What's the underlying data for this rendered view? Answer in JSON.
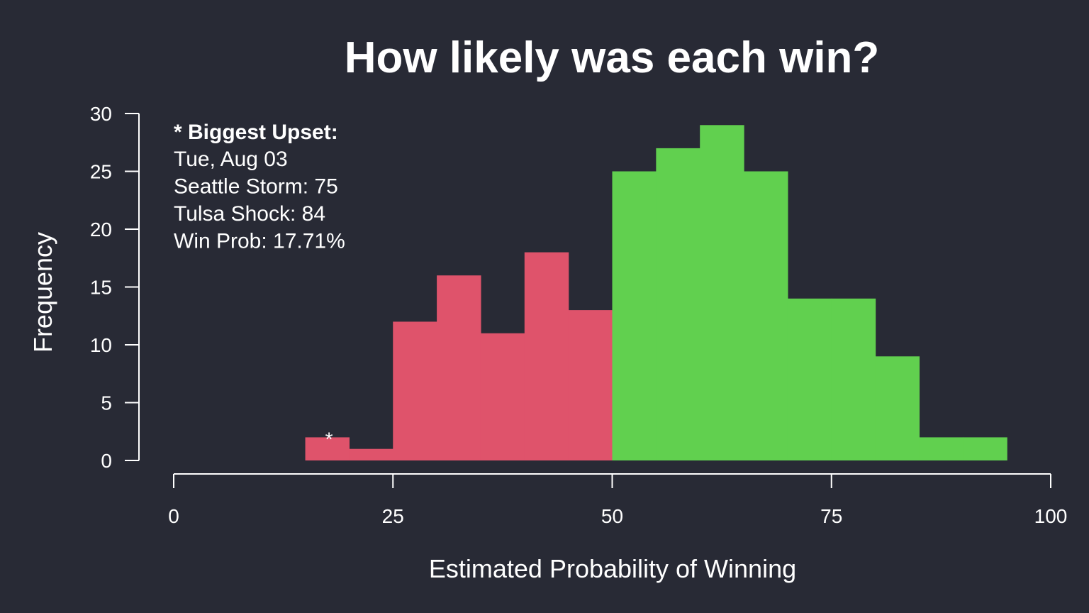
{
  "chart_data": {
    "type": "bar",
    "title": "How likely was each win?",
    "xlabel": "Estimated Probability of Winning",
    "ylabel": "Frequency",
    "xlim": [
      0,
      100
    ],
    "ylim": [
      0,
      30
    ],
    "x_ticks": [
      0,
      25,
      50,
      75,
      100
    ],
    "y_ticks": [
      0,
      5,
      10,
      15,
      20,
      25,
      30
    ],
    "bin_width": 5,
    "bins": [
      {
        "start": 15,
        "end": 20,
        "count": 2
      },
      {
        "start": 20,
        "end": 25,
        "count": 1
      },
      {
        "start": 25,
        "end": 30,
        "count": 12
      },
      {
        "start": 30,
        "end": 35,
        "count": 16
      },
      {
        "start": 35,
        "end": 40,
        "count": 11
      },
      {
        "start": 40,
        "end": 45,
        "count": 18
      },
      {
        "start": 45,
        "end": 50,
        "count": 13
      },
      {
        "start": 50,
        "end": 55,
        "count": 25
      },
      {
        "start": 55,
        "end": 60,
        "count": 27
      },
      {
        "start": 60,
        "end": 65,
        "count": 29
      },
      {
        "start": 65,
        "end": 70,
        "count": 25
      },
      {
        "start": 70,
        "end": 75,
        "count": 14
      },
      {
        "start": 75,
        "end": 80,
        "count": 14
      },
      {
        "start": 80,
        "end": 85,
        "count": 9
      },
      {
        "start": 85,
        "end": 90,
        "count": 2
      },
      {
        "start": 90,
        "end": 95,
        "count": 2
      }
    ],
    "colors": {
      "below_50": "#df536b",
      "above_50": "#61d04f",
      "background": "#282a35",
      "foreground": "#ffffff"
    },
    "color_split": 50,
    "annotation": {
      "marker": "*",
      "marker_x": 17.71,
      "heading": "* Biggest Upset:",
      "lines": [
        "Tue, Aug 03",
        "Seattle Storm: 75",
        "Tulsa Shock: 84",
        "Win Prob: 17.71%"
      ],
      "position": "top-left"
    },
    "grid": false
  }
}
